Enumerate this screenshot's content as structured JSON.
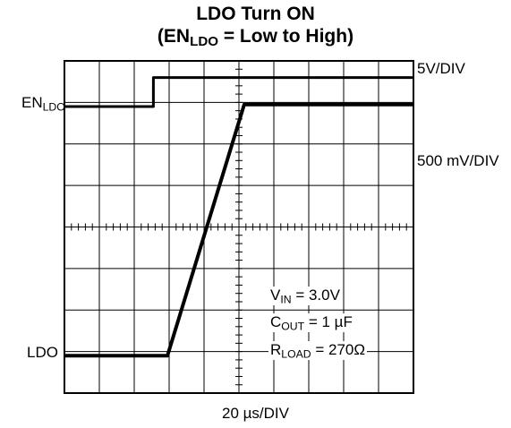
{
  "chart_data": {
    "type": "line",
    "title_line1": "LDO Turn ON",
    "title_line2": {
      "open": "(EN",
      "sub": "LDO",
      "rest": " = Low to High)"
    },
    "xlabel": "20 µs/DIV",
    "x_divisions": 10,
    "y_divisions": 8,
    "grid": true,
    "channel_scales": {
      "ch1": "5V/DIV",
      "ch2": "500 mV/DIV"
    },
    "series": [
      {
        "name": {
          "main": "EN",
          "sub": "LDO"
        },
        "x_div": [
          0,
          2.55,
          2.55,
          10
        ],
        "y_div": [
          6.9,
          6.9,
          7.6,
          7.6
        ]
      },
      {
        "name": {
          "main": "LDO",
          "sub": ""
        },
        "x_div": [
          0,
          2.95,
          5.15,
          10
        ],
        "y_div": [
          0.9,
          0.9,
          6.95,
          6.95
        ]
      }
    ],
    "annotations": [
      {
        "main": "V",
        "sub": "IN",
        "rest": " = 3.0V"
      },
      {
        "main": "C",
        "sub": "OUT",
        "rest": " = 1 µF"
      },
      {
        "main": "R",
        "sub": "LOAD",
        "rest": " = 270Ω"
      }
    ]
  }
}
